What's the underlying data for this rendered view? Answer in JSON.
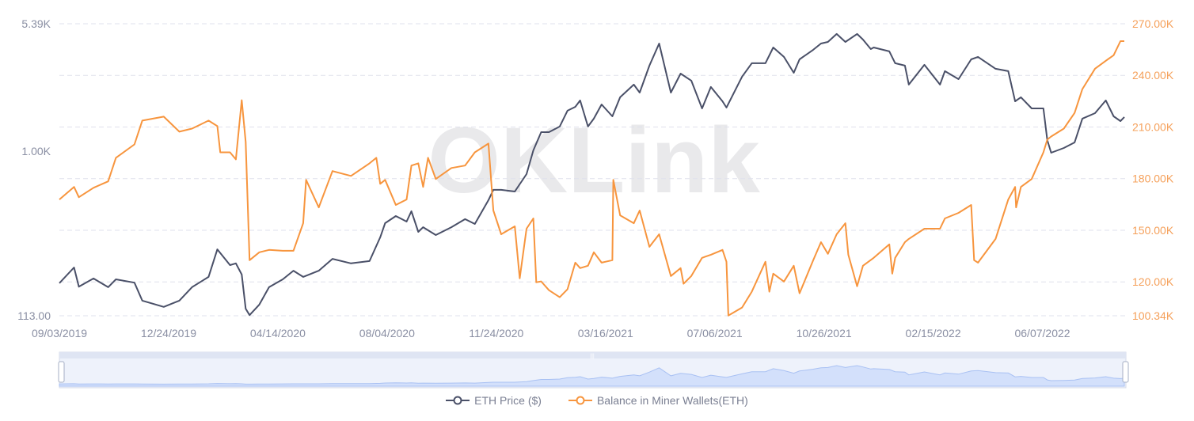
{
  "chart_data": {
    "type": "line",
    "watermark": "OKLink",
    "x_unit": "days since start date",
    "start_date": "09/03/2019",
    "x_range": [
      0,
      1092
    ],
    "x_tick_days": [
      0,
      112,
      224,
      336,
      448,
      560,
      672,
      784,
      896,
      1008
    ],
    "x_tick_labels": [
      "09/03/2019",
      "12/24/2019",
      "04/14/2020",
      "08/04/2020",
      "11/24/2020",
      "03/16/2021",
      "07/06/2021",
      "10/26/2021",
      "02/15/2022",
      "06/07/2022"
    ],
    "left_axis": {
      "scale": "log",
      "range": [
        113,
        5390
      ],
      "ticks": [
        113,
        1000,
        5390
      ],
      "tick_labels": [
        "113.00",
        "1.00K",
        "5.39K"
      ]
    },
    "right_axis": {
      "scale": "linear",
      "range": [
        100.34,
        270
      ],
      "ticks": [
        100.34,
        120,
        150,
        180,
        210,
        240,
        270
      ],
      "tick_labels": [
        "100.34K",
        "120.00K",
        "150.00K",
        "180.00K",
        "210.00K",
        "240.00K",
        "270.00K"
      ]
    },
    "grid": true,
    "legend_position": "bottom",
    "series": [
      {
        "name": "ETH Price ($)",
        "axis": "left",
        "color": "#4a5068",
        "points": [
          [
            0,
            174
          ],
          [
            15,
            214
          ],
          [
            20,
            166
          ],
          [
            35,
            185
          ],
          [
            50,
            165
          ],
          [
            58,
            183
          ],
          [
            77,
            175
          ],
          [
            85,
            138
          ],
          [
            107,
            127
          ],
          [
            123,
            138
          ],
          [
            136,
            165
          ],
          [
            153,
            189
          ],
          [
            162,
            272
          ],
          [
            175,
            221
          ],
          [
            181,
            226
          ],
          [
            187,
            195
          ],
          [
            191,
            124
          ],
          [
            195,
            114
          ],
          [
            205,
            131
          ],
          [
            215,
            165
          ],
          [
            229,
            183
          ],
          [
            240,
            205
          ],
          [
            250,
            189
          ],
          [
            266,
            205
          ],
          [
            280,
            240
          ],
          [
            299,
            226
          ],
          [
            318,
            233
          ],
          [
            329,
            319
          ],
          [
            334,
            385
          ],
          [
            345,
            423
          ],
          [
            356,
            393
          ],
          [
            361,
            451
          ],
          [
            368,
            343
          ],
          [
            373,
            365
          ],
          [
            386,
            329
          ],
          [
            402,
            365
          ],
          [
            416,
            406
          ],
          [
            426,
            381
          ],
          [
            440,
            522
          ],
          [
            445,
            598
          ],
          [
            453,
            598
          ],
          [
            467,
            585
          ],
          [
            479,
            737
          ],
          [
            486,
            1009
          ],
          [
            494,
            1284
          ],
          [
            502,
            1284
          ],
          [
            513,
            1382
          ],
          [
            521,
            1704
          ],
          [
            529,
            1795
          ],
          [
            534,
            1953
          ],
          [
            542,
            1382
          ],
          [
            548,
            1535
          ],
          [
            556,
            1852
          ],
          [
            567,
            1583
          ],
          [
            575,
            2036
          ],
          [
            589,
            2408
          ],
          [
            595,
            2168
          ],
          [
            605,
            3096
          ],
          [
            615,
            4150
          ],
          [
            627,
            2168
          ],
          [
            637,
            2787
          ],
          [
            648,
            2537
          ],
          [
            659,
            1758
          ],
          [
            668,
            2333
          ],
          [
            680,
            1932
          ],
          [
            684,
            1778
          ],
          [
            700,
            2674
          ],
          [
            710,
            3195
          ],
          [
            724,
            3195
          ],
          [
            732,
            3938
          ],
          [
            743,
            3474
          ],
          [
            753,
            2817
          ],
          [
            759,
            3366
          ],
          [
            773,
            3818
          ],
          [
            781,
            4150
          ],
          [
            788,
            4238
          ],
          [
            797,
            4708
          ],
          [
            806,
            4238
          ],
          [
            818,
            4708
          ],
          [
            824,
            4373
          ],
          [
            832,
            3857
          ],
          [
            835,
            3938
          ],
          [
            851,
            3738
          ],
          [
            857,
            3195
          ],
          [
            867,
            3096
          ],
          [
            871,
            2408
          ],
          [
            887,
            3130
          ],
          [
            903,
            2408
          ],
          [
            908,
            2877
          ],
          [
            922,
            2590
          ],
          [
            935,
            3366
          ],
          [
            942,
            3474
          ],
          [
            960,
            2970
          ],
          [
            973,
            2877
          ],
          [
            980,
            1932
          ],
          [
            986,
            2036
          ],
          [
            997,
            1758
          ],
          [
            1009,
            1758
          ],
          [
            1013,
            1156
          ],
          [
            1017,
            978
          ],
          [
            1030,
            1041
          ],
          [
            1041,
            1120
          ],
          [
            1049,
            1535
          ],
          [
            1062,
            1651
          ],
          [
            1073,
            1953
          ],
          [
            1081,
            1583
          ],
          [
            1088,
            1486
          ],
          [
            1092,
            1567
          ]
        ]
      },
      {
        "name": "Balance in Miner Wallets(ETH)",
        "axis": "right",
        "unit": "K ETH",
        "color": "#f7953e",
        "points": [
          [
            0,
            167.9
          ],
          [
            15,
            175.2
          ],
          [
            20,
            169.2
          ],
          [
            35,
            174.7
          ],
          [
            50,
            178.4
          ],
          [
            58,
            192.1
          ],
          [
            77,
            199.9
          ],
          [
            85,
            213.7
          ],
          [
            107,
            216
          ],
          [
            123,
            207.3
          ],
          [
            136,
            209.1
          ],
          [
            153,
            213.7
          ],
          [
            162,
            210.5
          ],
          [
            165,
            195.3
          ],
          [
            175,
            195.3
          ],
          [
            181,
            191.2
          ],
          [
            187,
            225.6
          ],
          [
            191,
            201.3
          ],
          [
            195,
            132.6
          ],
          [
            205,
            137.2
          ],
          [
            215,
            138.6
          ],
          [
            229,
            138.1
          ],
          [
            240,
            138.1
          ],
          [
            250,
            154.1
          ],
          [
            253,
            179.3
          ],
          [
            266,
            163.3
          ],
          [
            280,
            184.4
          ],
          [
            299,
            181.6
          ],
          [
            318,
            188.9
          ],
          [
            325,
            192.1
          ],
          [
            329,
            177
          ],
          [
            334,
            179.3
          ],
          [
            345,
            164.7
          ],
          [
            356,
            167.9
          ],
          [
            361,
            187.6
          ],
          [
            368,
            188.9
          ],
          [
            373,
            175.2
          ],
          [
            378,
            192.1
          ],
          [
            386,
            179.8
          ],
          [
            402,
            186.2
          ],
          [
            416,
            187.6
          ],
          [
            426,
            195.3
          ],
          [
            440,
            200.4
          ],
          [
            445,
            161.5
          ],
          [
            453,
            147.7
          ],
          [
            467,
            152.3
          ],
          [
            472,
            122.1
          ],
          [
            479,
            150.9
          ],
          [
            486,
            156.9
          ],
          [
            489,
            119.8
          ],
          [
            494,
            120.3
          ],
          [
            502,
            115.2
          ],
          [
            513,
            111.1
          ],
          [
            521,
            115.7
          ],
          [
            529,
            131.2
          ],
          [
            534,
            128
          ],
          [
            542,
            129.4
          ],
          [
            548,
            137.2
          ],
          [
            556,
            131.2
          ],
          [
            567,
            132.6
          ],
          [
            568,
            179.3
          ],
          [
            575,
            158.7
          ],
          [
            589,
            154.1
          ],
          [
            595,
            161.5
          ],
          [
            605,
            140.4
          ],
          [
            615,
            147.7
          ],
          [
            627,
            123.4
          ],
          [
            637,
            128
          ],
          [
            640,
            118.9
          ],
          [
            648,
            123.4
          ],
          [
            659,
            134
          ],
          [
            668,
            135.8
          ],
          [
            680,
            138.6
          ],
          [
            684,
            131.7
          ],
          [
            686,
            100.5
          ],
          [
            700,
            105.1
          ],
          [
            710,
            114.3
          ],
          [
            724,
            131.7
          ],
          [
            728,
            114.3
          ],
          [
            732,
            124.8
          ],
          [
            743,
            120.2
          ],
          [
            753,
            129.4
          ],
          [
            759,
            113.4
          ],
          [
            773,
            132.6
          ],
          [
            781,
            143.1
          ],
          [
            788,
            136.3
          ],
          [
            797,
            147.7
          ],
          [
            806,
            154.1
          ],
          [
            809,
            135.8
          ],
          [
            818,
            117.5
          ],
          [
            824,
            129.4
          ],
          [
            835,
            134
          ],
          [
            851,
            141.8
          ],
          [
            854,
            124.8
          ],
          [
            857,
            134
          ],
          [
            867,
            143.1
          ],
          [
            871,
            145
          ],
          [
            887,
            150.9
          ],
          [
            903,
            150.9
          ],
          [
            908,
            156.9
          ],
          [
            922,
            160.1
          ],
          [
            935,
            164.7
          ],
          [
            938,
            132.6
          ],
          [
            942,
            131.2
          ],
          [
            960,
            145
          ],
          [
            973,
            167.9
          ],
          [
            980,
            175.2
          ],
          [
            981,
            163.3
          ],
          [
            986,
            175.2
          ],
          [
            997,
            179.8
          ],
          [
            1009,
            195.3
          ],
          [
            1013,
            202.7
          ],
          [
            1017,
            204.5
          ],
          [
            1030,
            209.1
          ],
          [
            1041,
            218.2
          ],
          [
            1049,
            232
          ],
          [
            1062,
            243.9
          ],
          [
            1073,
            248.5
          ],
          [
            1081,
            251.7
          ],
          [
            1088,
            259.9
          ],
          [
            1092,
            259.9
          ]
        ]
      }
    ]
  },
  "slider": {
    "grip_label": "|||"
  }
}
